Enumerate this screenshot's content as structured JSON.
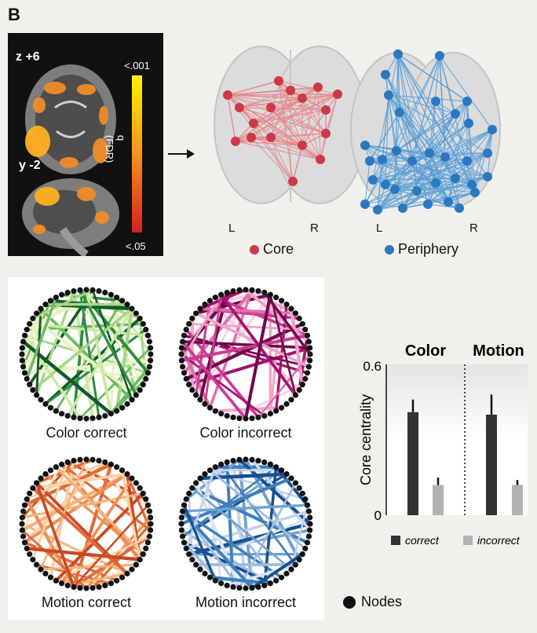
{
  "panel_letter": "B",
  "brain": {
    "slice_top": "z +6",
    "slice_bottom": "y -2",
    "scale_top": "<.001",
    "scale_bottom": "<.05",
    "scale_label": "q (FDR)"
  },
  "networks": {
    "left_label": "L",
    "right_label": "R",
    "core_label": "Core",
    "periphery_label": "Periphery",
    "core_color": "#cc3a44",
    "periphery_color": "#2a78c2"
  },
  "circles": [
    {
      "label": "Color correct",
      "palette": [
        "#e7f3c3",
        "#cfe8a6",
        "#a9d68a",
        "#6dbb63",
        "#2f8c3c",
        "#135a2b"
      ]
    },
    {
      "label": "Color incorrect",
      "palette": [
        "#f8cde2",
        "#efa3c9",
        "#e06fae",
        "#cc3a94",
        "#a4146e",
        "#6d0b4d"
      ]
    },
    {
      "label": "Motion correct",
      "palette": [
        "#fde6c7",
        "#fbd0a2",
        "#f6b27a",
        "#ee8f56",
        "#e06b3a",
        "#c84a26"
      ]
    },
    {
      "label": "Motion incorrect",
      "palette": [
        "#dde3f2",
        "#c5d1ea",
        "#9fbde0",
        "#6fa3d2",
        "#3f7fbd",
        "#17528e"
      ]
    }
  ],
  "nodes_label": "Nodes",
  "chart_data": {
    "type": "bar",
    "groups": [
      "Color",
      "Motion"
    ],
    "series": [
      {
        "name": "correct",
        "values": [
          0.41,
          0.4
        ],
        "errors": [
          0.05,
          0.08
        ],
        "color": "#333333"
      },
      {
        "name": "incorrect",
        "values": [
          0.12,
          0.12
        ],
        "errors": [
          0.03,
          0.02
        ],
        "color": "#b2b2b2"
      }
    ],
    "ylabel": "Core centrality",
    "ylim": [
      0,
      0.6
    ],
    "yticks": [
      "0",
      "0.6"
    ]
  }
}
